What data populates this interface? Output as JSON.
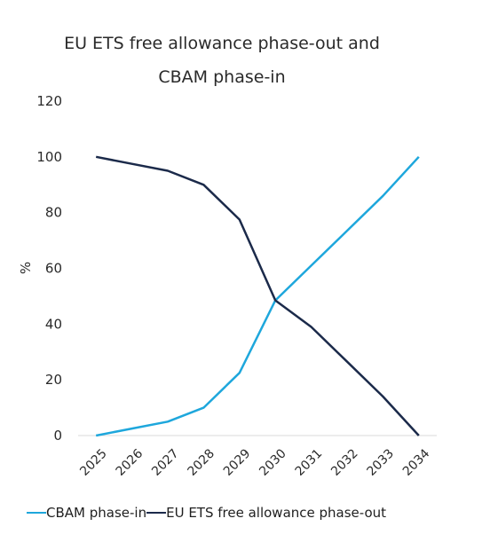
{
  "chart_data": {
    "type": "line",
    "title_line1": "EU ETS free allowance phase-out and",
    "title_line2": "CBAM phase-in",
    "ylabel": "%",
    "xlabel": "",
    "ylim": [
      0,
      120
    ],
    "yticks": [
      0,
      20,
      40,
      60,
      80,
      100,
      120
    ],
    "categories": [
      "2025",
      "2026",
      "2027",
      "2028",
      "2029",
      "2030",
      "2031",
      "2032",
      "2033",
      "2034"
    ],
    "series": [
      {
        "name": "CBAM phase-in",
        "color": "#1ea7dc",
        "values": [
          0,
          2.5,
          5,
          10,
          22.5,
          48.5,
          61,
          73.5,
          86,
          100
        ]
      },
      {
        "name": "EU ETS free allowance phase-out",
        "color": "#1b2a4a",
        "values": [
          100,
          97.5,
          95,
          90,
          77.5,
          48.5,
          39,
          26.5,
          14,
          0
        ]
      }
    ],
    "grid": false,
    "legend_position": "bottom"
  }
}
